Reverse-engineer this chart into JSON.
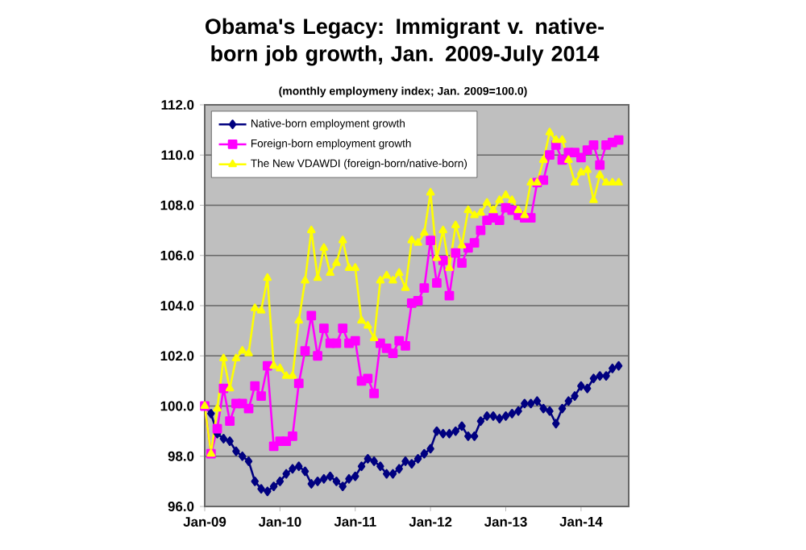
{
  "chart_data": {
    "type": "line",
    "title": "Obama's Legacy: Immigrant v. native-born job growth, Jan. 2009-July 2014",
    "subtitle": "(monthly employmeny index; Jan. 2009=100.0)",
    "categories": [
      "Jan-09",
      null,
      null,
      null,
      null,
      null,
      null,
      null,
      null,
      null,
      null,
      null,
      "Jan-10",
      null,
      null,
      null,
      null,
      null,
      null,
      null,
      null,
      null,
      null,
      null,
      "Jan-11",
      null,
      null,
      null,
      null,
      null,
      null,
      null,
      null,
      null,
      null,
      null,
      "Jan-12",
      null,
      null,
      null,
      null,
      null,
      null,
      null,
      null,
      null,
      null,
      null,
      "Jan-13",
      null,
      null,
      null,
      null,
      null,
      null,
      null,
      null,
      null,
      null,
      null,
      "Jan-14",
      null,
      null,
      null,
      null,
      null,
      null
    ],
    "series": [
      {
        "name": "Native-born employment growth",
        "color": "#000080",
        "marker": "diamond",
        "values": [
          100.0,
          99.7,
          98.9,
          98.7,
          98.6,
          98.2,
          98.0,
          97.8,
          97.0,
          96.7,
          96.6,
          96.8,
          97.0,
          97.3,
          97.5,
          97.6,
          97.4,
          96.9,
          97.0,
          97.1,
          97.2,
          97.0,
          96.8,
          97.1,
          97.2,
          97.6,
          97.9,
          97.8,
          97.6,
          97.3,
          97.3,
          97.5,
          97.8,
          97.7,
          97.9,
          98.1,
          98.3,
          99.0,
          98.9,
          98.9,
          99.0,
          99.2,
          98.8,
          98.8,
          99.4,
          99.6,
          99.6,
          99.5,
          99.6,
          99.7,
          99.8,
          100.1,
          100.1,
          100.2,
          99.9,
          99.8,
          99.3,
          99.9,
          100.2,
          100.4,
          100.8,
          100.7,
          101.1,
          101.2,
          101.2,
          101.5,
          101.6
        ]
      },
      {
        "name": "Foreign-born employment growth",
        "color": "#ff00ff",
        "marker": "square",
        "values": [
          100.0,
          98.1,
          99.1,
          100.7,
          99.4,
          100.1,
          100.1,
          99.9,
          100.8,
          100.4,
          101.6,
          98.4,
          98.6,
          98.6,
          98.8,
          100.9,
          102.2,
          103.6,
          102.0,
          103.1,
          102.5,
          102.5,
          103.1,
          102.5,
          102.6,
          101.0,
          101.1,
          100.5,
          102.5,
          102.3,
          102.1,
          102.6,
          102.4,
          104.1,
          104.2,
          104.7,
          106.6,
          104.9,
          105.8,
          104.4,
          106.1,
          105.7,
          106.3,
          106.5,
          107.0,
          107.4,
          107.5,
          107.4,
          107.9,
          107.8,
          107.6,
          107.5,
          107.5,
          108.9,
          109.0,
          110.0,
          110.4,
          109.8,
          110.1,
          110.1,
          109.9,
          110.2,
          110.4,
          109.6,
          110.4,
          110.5,
          110.6
        ]
      },
      {
        "name": "The New VDAWDI  (foreign-born/native-born)",
        "color": "#ffff00",
        "marker": "triangle",
        "values": [
          100.0,
          98.1,
          99.9,
          101.9,
          100.7,
          101.9,
          102.2,
          102.1,
          103.9,
          103.8,
          105.1,
          101.6,
          101.5,
          101.2,
          101.2,
          103.4,
          105.0,
          107.0,
          105.1,
          106.3,
          105.3,
          105.7,
          106.6,
          105.5,
          105.5,
          103.4,
          103.2,
          102.7,
          105.0,
          105.2,
          105.0,
          105.3,
          104.7,
          106.6,
          106.5,
          106.9,
          108.5,
          105.9,
          107.0,
          105.5,
          107.2,
          106.4,
          107.8,
          107.6,
          107.7,
          108.1,
          107.8,
          108.2,
          108.4,
          108.2,
          107.8,
          107.6,
          108.9,
          108.9,
          109.8,
          110.9,
          110.6,
          110.6,
          109.8,
          108.9,
          109.3,
          109.4,
          108.2,
          109.2,
          108.9,
          108.9,
          108.9
        ]
      }
    ],
    "ylim": [
      96,
      112
    ],
    "yticks": [
      {
        "value": 96,
        "label": "96.0"
      },
      {
        "value": 98,
        "label": "98.0"
      },
      {
        "value": 100,
        "label": "100.0"
      },
      {
        "value": 102,
        "label": "102.0"
      },
      {
        "value": 104,
        "label": "104.0"
      },
      {
        "value": 106,
        "label": "106.0"
      },
      {
        "value": 108,
        "label": "108.0"
      },
      {
        "value": 110,
        "label": "110.0"
      },
      {
        "value": 112,
        "label": "112.0"
      }
    ],
    "grid": "y",
    "legend": "top left",
    "line_style": "solid"
  }
}
